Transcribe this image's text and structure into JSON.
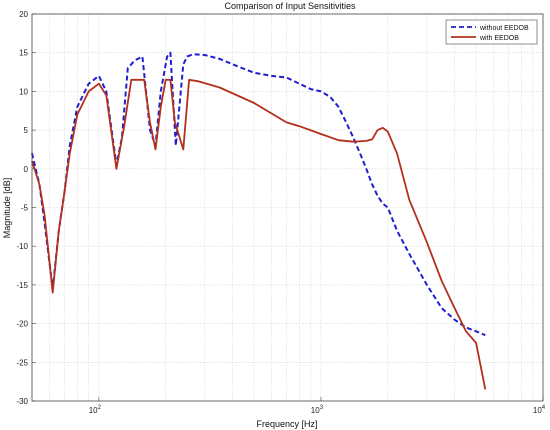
{
  "chart_data": {
    "type": "line",
    "title": "Comparison of Input Sensitivities",
    "xlabel": "Frequency [Hz]",
    "ylabel": "Magnitude [dB]",
    "xscale": "log",
    "xlim": [
      50,
      10000
    ],
    "ylim": [
      -30,
      20
    ],
    "grid": true,
    "legend_position": "top-right",
    "x_ticks": [
      {
        "value": 100,
        "base": "10",
        "exp": "2"
      },
      {
        "value": 1000,
        "base": "10",
        "exp": "3"
      },
      {
        "value": 10000,
        "base": "10",
        "exp": "4"
      }
    ],
    "y_ticks": [
      -30,
      -25,
      -20,
      -15,
      -10,
      -5,
      0,
      5,
      10,
      15,
      20
    ],
    "series": [
      {
        "name": "without EEDOB",
        "color": "#1f1fd1",
        "style": "dashed",
        "x": [
          50,
          54,
          57,
          62,
          66,
          70,
          74,
          80,
          90,
          100,
          108,
          120,
          127,
          135,
          145,
          157,
          170,
          180,
          190,
          203,
          210,
          222,
          240,
          250,
          265,
          300,
          350,
          400,
          500,
          600,
          700,
          800,
          900,
          1000,
          1100,
          1200,
          1300,
          1400,
          1500,
          1600,
          1700,
          1800,
          1900,
          2000,
          2200,
          2500,
          3000,
          3500,
          4000,
          4500,
          5000,
          5500
        ],
        "y": [
          2,
          -2,
          -7,
          -15.5,
          -8,
          -3,
          3,
          8,
          11,
          12,
          10,
          0.5,
          4,
          13,
          14,
          14.5,
          5,
          3,
          10,
          14.5,
          15,
          3,
          13.5,
          14.5,
          14.8,
          14.7,
          14.2,
          13.5,
          12.4,
          12,
          11.8,
          11,
          10.3,
          10,
          9.3,
          8,
          6,
          4,
          2,
          0,
          -2,
          -3.5,
          -4.5,
          -5,
          -8,
          -11,
          -15,
          -18,
          -19.5,
          -20.5,
          -21,
          -21.5
        ]
      },
      {
        "name": "with EEDOB",
        "color": "#b3301c",
        "style": "solid",
        "x": [
          50,
          54,
          57,
          62,
          66,
          70,
          74,
          80,
          90,
          100,
          108,
          120,
          130,
          140,
          150,
          160,
          170,
          180,
          190,
          200,
          210,
          220,
          240,
          255,
          280,
          350,
          500,
          700,
          800,
          1000,
          1200,
          1400,
          1600,
          1700,
          1800,
          1900,
          2000,
          2200,
          2500,
          3000,
          3500,
          4000,
          4500,
          5000,
          5500
        ],
        "y": [
          1,
          -2,
          -6,
          -16,
          -8,
          -3,
          2,
          7,
          10,
          11,
          9.5,
          0,
          5.5,
          11.5,
          11.5,
          11.5,
          6,
          2.5,
          8,
          11.5,
          11.5,
          6,
          2.5,
          11.5,
          11.3,
          10.5,
          8.5,
          6,
          5.5,
          4.5,
          3.7,
          3.5,
          3.6,
          3.8,
          5,
          5.3,
          4.8,
          2,
          -4,
          -9.5,
          -14.5,
          -18,
          -21,
          -22.5,
          -28.5
        ]
      }
    ]
  }
}
